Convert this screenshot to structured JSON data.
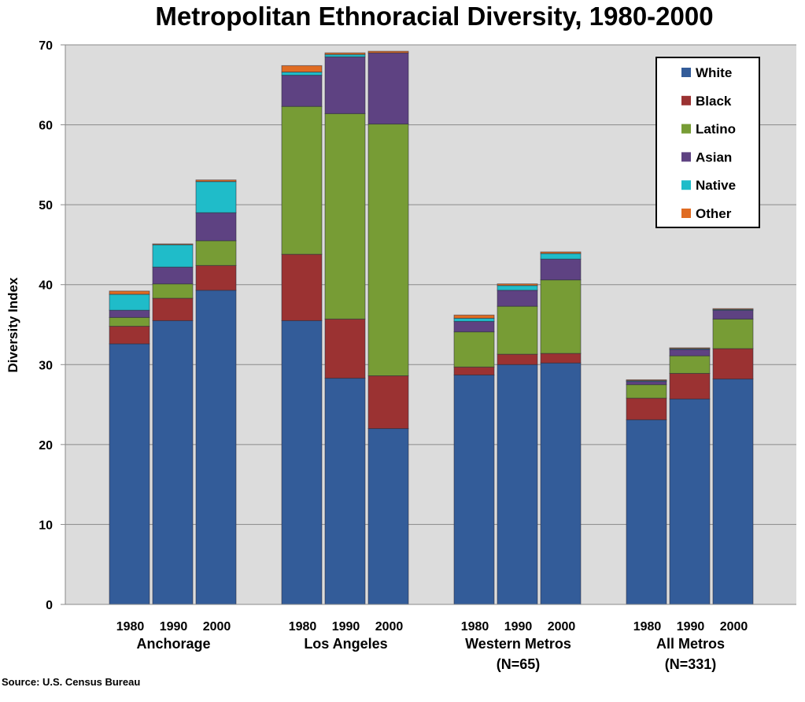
{
  "chart_data": {
    "type": "bar",
    "stacked": true,
    "title": "Metropolitan Ethnoracial Diversity, 1980-2000",
    "xlabel": "",
    "ylabel": "Diversity Index",
    "ylim": [
      0,
      70
    ],
    "yticks": [
      0,
      10,
      20,
      30,
      40,
      50,
      60,
      70
    ],
    "grid": true,
    "legend_position": "top-right",
    "source": "Source: U.S. Census Bureau",
    "groups": [
      {
        "name": "Anchorage",
        "sub": ""
      },
      {
        "name": "Los Angeles",
        "sub": ""
      },
      {
        "name": "Western Metros",
        "sub": "(N=65)"
      },
      {
        "name": "All Metros",
        "sub": "(N=331)"
      }
    ],
    "years": [
      "1980",
      "1990",
      "2000"
    ],
    "categories": [
      "Anchorage 1980",
      "Anchorage 1990",
      "Anchorage 2000",
      "Los Angeles 1980",
      "Los Angeles 1990",
      "Los Angeles 2000",
      "Western Metros 1980",
      "Western Metros 1990",
      "Western Metros 2000",
      "All Metros 1980",
      "All Metros 1990",
      "All Metros 2000"
    ],
    "series": [
      {
        "name": "White",
        "color": "#335c99",
        "values": [
          32.6,
          35.5,
          39.3,
          35.5,
          28.3,
          22.0,
          28.7,
          30.0,
          30.2,
          23.1,
          25.7,
          28.2
        ]
      },
      {
        "name": "Black",
        "color": "#9b3232",
        "values": [
          2.2,
          2.8,
          3.1,
          8.3,
          7.4,
          6.6,
          1.0,
          1.3,
          1.2,
          2.7,
          3.2,
          3.8
        ]
      },
      {
        "name": "Latino",
        "color": "#779c35",
        "values": [
          1.1,
          1.8,
          3.1,
          18.5,
          25.7,
          31.5,
          4.4,
          6.0,
          9.2,
          1.7,
          2.2,
          3.7
        ]
      },
      {
        "name": "Asian",
        "color": "#5e4282",
        "values": [
          0.9,
          2.1,
          3.5,
          3.9,
          7.1,
          8.9,
          1.3,
          2.0,
          2.6,
          0.4,
          0.8,
          1.1
        ]
      },
      {
        "name": "Native",
        "color": "#1fbcc9",
        "values": [
          2.0,
          2.8,
          3.9,
          0.4,
          0.3,
          0.0,
          0.4,
          0.6,
          0.7,
          0.1,
          0.1,
          0.1
        ]
      },
      {
        "name": "Other",
        "color": "#e06c22",
        "values": [
          0.4,
          0.1,
          0.2,
          0.8,
          0.2,
          0.2,
          0.4,
          0.2,
          0.2,
          0.1,
          0.1,
          0.1
        ]
      }
    ]
  }
}
